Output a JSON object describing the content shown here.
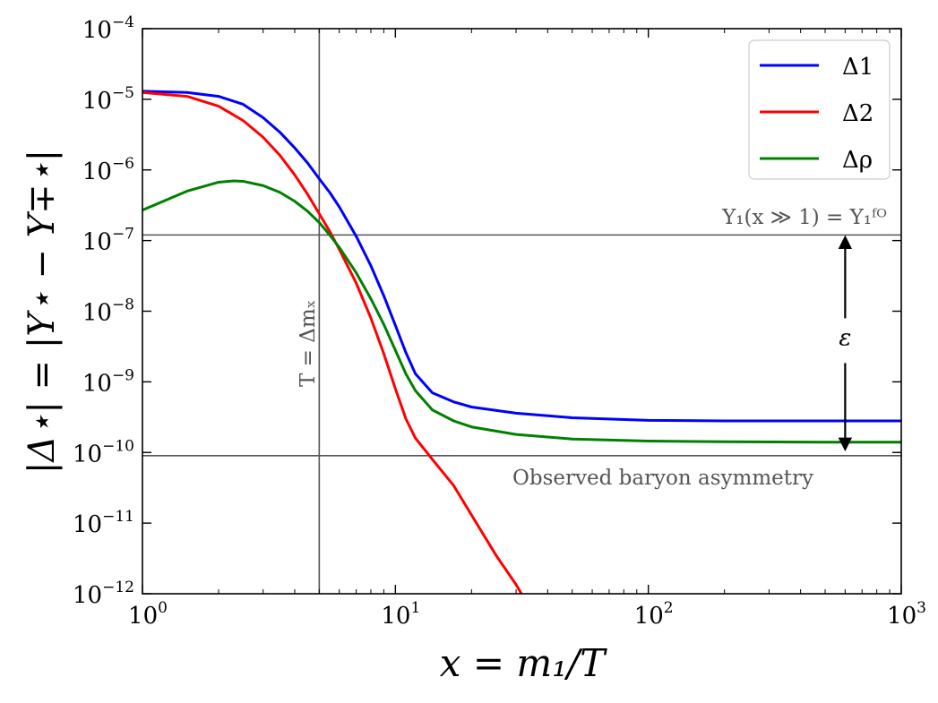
{
  "chart_data": {
    "type": "line",
    "title": "",
    "xlabel": "x = m₁/T",
    "ylabel": "|Δ⋆| = |Y⋆ − Y∓⋆|",
    "x_scale": "log",
    "y_scale": "log",
    "xlim": [
      1,
      1000
    ],
    "ylim": [
      1e-12,
      0.0001
    ],
    "x_ticks": [
      {
        "base": "10",
        "exp": "0"
      },
      {
        "base": "10",
        "exp": "1"
      },
      {
        "base": "10",
        "exp": "2"
      },
      {
        "base": "10",
        "exp": "3"
      }
    ],
    "y_ticks": [
      {
        "base": "10",
        "exp": "−4"
      },
      {
        "base": "10",
        "exp": "−5"
      },
      {
        "base": "10",
        "exp": "−6"
      },
      {
        "base": "10",
        "exp": "−7"
      },
      {
        "base": "10",
        "exp": "−8"
      },
      {
        "base": "10",
        "exp": "−9"
      },
      {
        "base": "10",
        "exp": "−10"
      },
      {
        "base": "10",
        "exp": "−11"
      },
      {
        "base": "10",
        "exp": "−12"
      }
    ],
    "grid": false,
    "legend_position": "top-right",
    "series": [
      {
        "name": "Δ1",
        "color": "#0000ff",
        "x": [
          1,
          1.5,
          2,
          2.5,
          3,
          3.5,
          4,
          4.5,
          5,
          5.5,
          6,
          7,
          8,
          9,
          10,
          11,
          12,
          14,
          17,
          20,
          30,
          50,
          100,
          200,
          500,
          1000
        ],
        "y": [
          1.3e-05,
          1.25e-05,
          1.1e-05,
          8.5e-06,
          5.5e-06,
          3.4e-06,
          2.05e-06,
          1.25e-06,
          7.5e-07,
          4.8e-07,
          3e-07,
          1.15e-07,
          4.4e-08,
          1.65e-08,
          6.3e-09,
          2.6e-09,
          1.3e-09,
          7e-10,
          5.2e-10,
          4.4e-10,
          3.6e-10,
          3.1e-10,
          2.85e-10,
          2.8e-10,
          2.8e-10,
          2.8e-10
        ]
      },
      {
        "name": "Δ2",
        "color": "#ff0000",
        "x": [
          1,
          1.5,
          2,
          2.5,
          3,
          3.5,
          4,
          4.5,
          5,
          5.5,
          6,
          7,
          8,
          9,
          10,
          11,
          12,
          14,
          17,
          20,
          25,
          30,
          31.5
        ],
        "y": [
          1.25e-05,
          1.1e-05,
          8e-06,
          5e-06,
          2.9e-06,
          1.6e-06,
          8.5e-07,
          4.5e-07,
          2.4e-07,
          1.35e-07,
          7.5e-08,
          2.5e-08,
          8e-09,
          2.5e-09,
          8e-10,
          3e-10,
          1.6e-10,
          8e-11,
          3.4e-11,
          1.3e-11,
          3.5e-12,
          1.35e-12,
          1e-12
        ]
      },
      {
        "name": "Δρ",
        "color": "#008000",
        "x": [
          1,
          1.5,
          2,
          2.3,
          2.5,
          3,
          3.5,
          4,
          4.5,
          5,
          5.5,
          6,
          7,
          8,
          9,
          10,
          11,
          12,
          14,
          17,
          20,
          30,
          50,
          100,
          200,
          500,
          1000
        ],
        "y": [
          2.7e-07,
          5e-07,
          6.7e-07,
          7e-07,
          6.9e-07,
          6e-07,
          4.8e-07,
          3.6e-07,
          2.6e-07,
          1.8e-07,
          1.2e-07,
          8e-08,
          3.5e-08,
          1.5e-08,
          6.5e-09,
          2.8e-09,
          1.3e-09,
          7.5e-10,
          4e-10,
          2.8e-10,
          2.3e-10,
          1.8e-10,
          1.55e-10,
          1.45e-10,
          1.42e-10,
          1.4e-10,
          1.4e-10
        ]
      }
    ],
    "reference_lines": {
      "vertical": {
        "x": 5,
        "color": "#555555",
        "label": "T = Δmₓ"
      },
      "horizontal_top": {
        "y": 1.2e-07,
        "color": "#555555",
        "label": "Y₁(x ≫ 1) = Y₁ᶠᴼ"
      },
      "horizontal_bottom": {
        "y": 9e-11,
        "color": "#555555",
        "label": "Observed baryon asymmetry"
      }
    },
    "arrow": {
      "x": 600,
      "y_from": 1.2e-07,
      "y_to": 1.3e-10,
      "label": "ε"
    }
  }
}
